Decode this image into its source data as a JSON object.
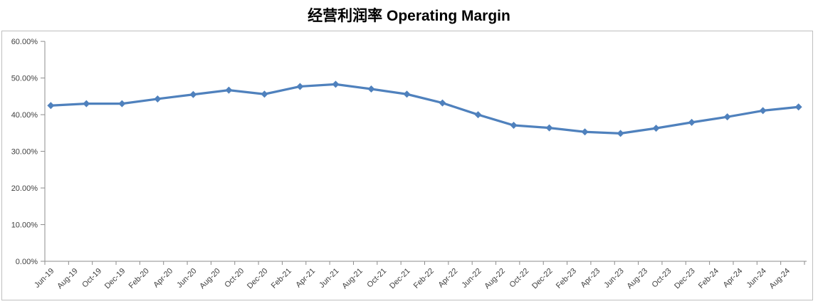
{
  "title": "经营利润率 Operating Margin",
  "colors": {
    "series_line": "#4f81bd",
    "axis_line": "#8c8c8c",
    "frame_border": "#bfbfbf",
    "label_text": "#404040",
    "title_text": "#000000",
    "background": "#ffffff"
  },
  "chart_data": {
    "type": "line",
    "title": "经营利润率 Operating Margin",
    "xlabel": "",
    "ylabel": "",
    "ylim": [
      0,
      60
    ],
    "grid": false,
    "legend_position": "none",
    "marker_shape": "diamond",
    "y_tick_labels": [
      "60.00%",
      "50.00%",
      "40.00%",
      "30.00%",
      "20.00%",
      "10.00%",
      "0.00%"
    ],
    "y_tick_values": [
      60,
      50,
      40,
      30,
      20,
      10,
      0
    ],
    "x_axis_labels": [
      "Jun-19",
      "Aug-19",
      "Oct-19",
      "Dec-19",
      "Feb-20",
      "Apr-20",
      "Jun-20",
      "Aug-20",
      "Oct-20",
      "Dec-20",
      "Feb-21",
      "Apr-21",
      "Jun-21",
      "Aug-21",
      "Oct-21",
      "Dec-21",
      "Feb-22",
      "Apr-22",
      "Jun-22",
      "Aug-22",
      "Oct-22",
      "Dec-22",
      "Feb-23",
      "Apr-23",
      "Jun-23",
      "Aug-23",
      "Oct-23",
      "Dec-23",
      "Feb-24",
      "Apr-24",
      "Jun-24",
      "Aug-24"
    ],
    "x_label_interval_months": 2,
    "data_interval_months": 3,
    "series": [
      {
        "name": "经营利润率 Operating Margin",
        "x": [
          "Jun-19",
          "Sep-19",
          "Dec-19",
          "Mar-20",
          "Jun-20",
          "Sep-20",
          "Dec-20",
          "Mar-21",
          "Jun-21",
          "Sep-21",
          "Dec-21",
          "Mar-22",
          "Jun-22",
          "Sep-22",
          "Dec-22",
          "Mar-23",
          "Jun-23",
          "Sep-23",
          "Dec-23",
          "Mar-24",
          "Jun-24",
          "Sep-24"
        ],
        "values": [
          42.5,
          43.0,
          43.0,
          44.3,
          45.5,
          46.7,
          45.6,
          47.7,
          48.3,
          47.0,
          45.6,
          43.2,
          40.0,
          37.1,
          36.4,
          35.3,
          34.9,
          36.3,
          37.9,
          39.4,
          41.1,
          42.1
        ]
      }
    ]
  }
}
